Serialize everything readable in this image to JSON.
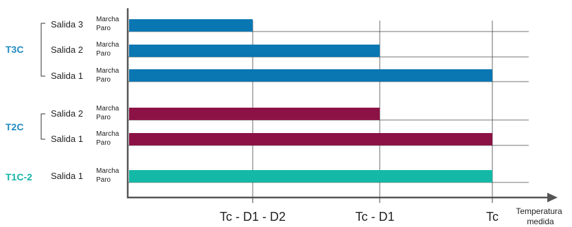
{
  "groups": [
    {
      "label": "T3C",
      "color": "#1f8ac0",
      "rows": [
        {
          "output": "Salida 3",
          "on_label": "Marcha",
          "off_label": "Paro",
          "bar_end": "Tc - D1 - D2",
          "bar_color": "#0a76b2"
        },
        {
          "output": "Salida 2",
          "on_label": "Marcha",
          "off_label": "Paro",
          "bar_end": "Tc - D1",
          "bar_color": "#0a76b2"
        },
        {
          "output": "Salida 1",
          "on_label": "Marcha",
          "off_label": "Paro",
          "bar_end": "Tc",
          "bar_color": "#0a76b2"
        }
      ]
    },
    {
      "label": "T2C",
      "color": "#1f8ac0",
      "rows": [
        {
          "output": "Salida 2",
          "on_label": "Marcha",
          "off_label": "Paro",
          "bar_end": "Tc - D1",
          "bar_color": "#8c1246"
        },
        {
          "output": "Salida 1",
          "on_label": "Marcha",
          "off_label": "Paro",
          "bar_end": "Tc",
          "bar_color": "#8c1246"
        }
      ]
    },
    {
      "label": "T1C-2",
      "color": "#13b3a6",
      "rows": [
        {
          "output": "Salida 1",
          "on_label": "Marcha",
          "off_label": "Paro",
          "bar_end": "Tc",
          "bar_color": "#13b9a6"
        }
      ]
    }
  ],
  "x_axis": {
    "ticks": [
      "Tc - D1 - D2",
      "Tc - D1",
      "Tc"
    ],
    "label_line1": "Temperatura",
    "label_line2": "medida"
  }
}
